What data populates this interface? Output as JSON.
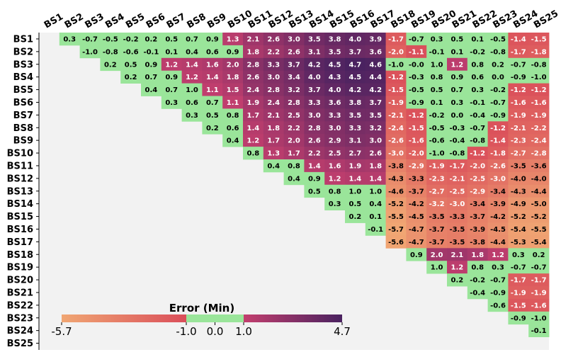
{
  "chart_data": {
    "type": "heatmap",
    "labels": [
      "BS1",
      "BS2",
      "BS3",
      "BS4",
      "BS5",
      "BS6",
      "BS7",
      "BS8",
      "BS9",
      "BS10",
      "BS11",
      "BS12",
      "BS13",
      "BS14",
      "BS15",
      "BS16",
      "BS17",
      "BS18",
      "BS19",
      "BS20",
      "BS21",
      "BS22",
      "BS23",
      "BS24",
      "BS25"
    ],
    "matrix": [
      [
        0.3,
        -0.7,
        -0.5,
        -0.2,
        0.2,
        0.5,
        0.7,
        0.9,
        1.3,
        2.1,
        2.6,
        3.0,
        3.5,
        3.8,
        4.0,
        3.9,
        -1.7,
        -0.7,
        0.3,
        0.5,
        0.1,
        -0.5,
        -1.4,
        -1.5
      ],
      [
        -1.0,
        -0.8,
        -0.6,
        -0.1,
        0.1,
        0.4,
        0.6,
        0.9,
        1.8,
        2.2,
        2.6,
        3.1,
        3.5,
        3.7,
        3.6,
        -2.0,
        -1.1,
        -0.1,
        0.1,
        -0.2,
        -0.8,
        -1.7,
        -1.8
      ],
      [
        0.2,
        0.5,
        0.9,
        1.2,
        1.4,
        1.6,
        2.0,
        2.8,
        3.3,
        3.7,
        4.2,
        4.5,
        4.7,
        4.6,
        -1.0,
        -0.0,
        1.0,
        1.2,
        0.8,
        0.2,
        -0.7,
        -0.8
      ],
      [
        0.2,
        0.7,
        0.9,
        1.2,
        1.4,
        1.8,
        2.6,
        3.0,
        3.4,
        4.0,
        4.3,
        4.5,
        4.4,
        -1.2,
        -0.3,
        0.8,
        0.9,
        0.6,
        0.0,
        -0.9,
        -1.0
      ],
      [
        0.4,
        0.7,
        1.0,
        1.1,
        1.5,
        2.4,
        2.8,
        3.2,
        3.7,
        4.0,
        4.2,
        4.2,
        -1.5,
        -0.5,
        0.5,
        0.7,
        0.3,
        -0.2,
        -1.2,
        -1.2
      ],
      [
        0.3,
        0.6,
        0.7,
        1.1,
        1.9,
        2.4,
        2.8,
        3.3,
        3.6,
        3.8,
        3.7,
        -1.9,
        -0.9,
        0.1,
        0.3,
        -0.1,
        -0.7,
        -1.6,
        -1.6
      ],
      [
        0.3,
        0.5,
        0.8,
        1.7,
        2.1,
        2.5,
        3.0,
        3.3,
        3.5,
        3.5,
        -2.1,
        -1.2,
        -0.2,
        0.0,
        -0.4,
        -0.9,
        -1.9,
        -1.9
      ],
      [
        0.2,
        0.6,
        1.4,
        1.8,
        2.2,
        2.8,
        3.0,
        3.3,
        3.2,
        -2.4,
        -1.5,
        -0.5,
        -0.3,
        -0.7,
        -1.2,
        -2.1,
        -2.2
      ],
      [
        0.4,
        1.2,
        1.7,
        2.0,
        2.6,
        2.9,
        3.1,
        3.0,
        -2.6,
        -1.6,
        -0.6,
        -0.4,
        -0.8,
        -1.4,
        -2.3,
        -2.4
      ],
      [
        0.8,
        1.3,
        1.7,
        2.2,
        2.5,
        2.7,
        2.6,
        -3.0,
        -2.0,
        -1.0,
        -0.8,
        -1.2,
        -1.8,
        -2.7,
        -2.8
      ],
      [
        0.4,
        0.8,
        1.4,
        1.6,
        1.9,
        1.8,
        -3.8,
        -2.9,
        -1.9,
        -1.7,
        -2.0,
        -2.6,
        -3.5,
        -3.6
      ],
      [
        0.4,
        0.9,
        1.2,
        1.4,
        1.4,
        -4.3,
        -3.3,
        -2.3,
        -2.1,
        -2.5,
        -3.0,
        -4.0,
        -4.0
      ],
      [
        0.5,
        0.8,
        1.0,
        1.0,
        -4.6,
        -3.7,
        -2.7,
        -2.5,
        -2.9,
        -3.4,
        -4.3,
        -4.4
      ],
      [
        0.3,
        0.5,
        0.4,
        -5.2,
        -4.2,
        -3.2,
        -3.0,
        -3.4,
        -3.9,
        -4.9,
        -5.0
      ],
      [
        0.2,
        0.1,
        -5.5,
        -4.5,
        -3.5,
        -3.3,
        -3.7,
        -4.2,
        -5.2,
        -5.2
      ],
      [
        -0.1,
        -5.7,
        -4.7,
        -3.7,
        -3.5,
        -3.9,
        -4.5,
        -5.4,
        -5.5
      ],
      [
        -5.6,
        -4.7,
        -3.7,
        -3.5,
        -3.8,
        -4.4,
        -5.3,
        -5.4
      ],
      [
        0.9,
        2.0,
        2.1,
        1.8,
        1.2,
        0.3,
        0.2
      ],
      [
        1.0,
        1.2,
        0.8,
        0.3,
        -0.7,
        -0.7
      ],
      [
        0.2,
        -0.2,
        -0.7,
        -1.7,
        -1.7
      ],
      [
        -0.4,
        -0.9,
        -1.9,
        -1.9
      ],
      [
        -0.6,
        -1.5,
        -1.6
      ],
      [
        -0.9,
        -1.0
      ],
      [
        -0.1
      ],
      []
    ],
    "colorbar": {
      "title": "Error (Min)",
      "ticks": [
        "-5.7",
        "-1.0",
        "0.0",
        "1.0",
        "4.7"
      ],
      "tick_values": [
        -5.7,
        -1.0,
        0.0,
        1.0,
        4.7
      ],
      "vmin": -5.7,
      "vmax": 4.7,
      "green_band": [
        -1.0,
        1.0
      ]
    },
    "colors": {
      "green": "#9ae59a",
      "orange_low": "#f0a673",
      "orange_high": "#da4e5a",
      "purple_low": "#c33f6e",
      "purple_high": "#4a2260",
      "background": "#f2f2f2"
    }
  }
}
